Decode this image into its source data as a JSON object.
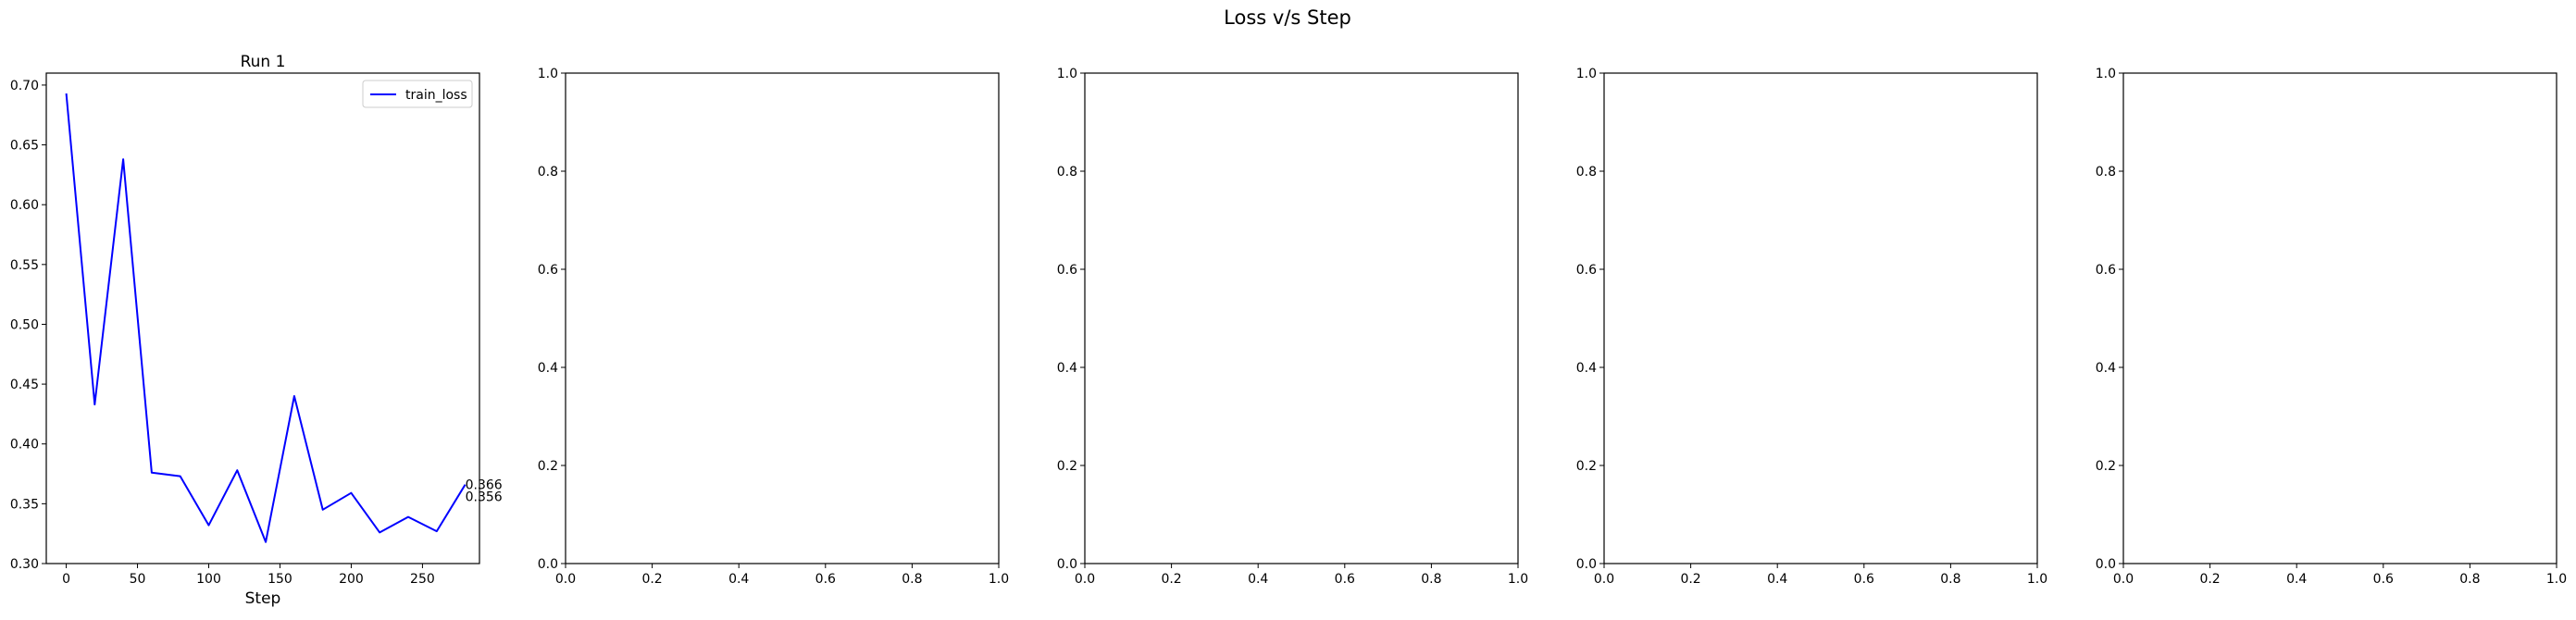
{
  "figure": {
    "suptitle": "Loss v/s Step"
  },
  "chart_data": [
    {
      "type": "line",
      "title": "Run 1",
      "xlabel": "Step",
      "ylabel": "",
      "xlim": [
        -14,
        290
      ],
      "ylim": [
        0.3,
        0.71
      ],
      "xticks": [
        0,
        50,
        100,
        150,
        200,
        250
      ],
      "yticks": [
        0.3,
        0.35,
        0.4,
        0.45,
        0.5,
        0.55,
        0.6,
        0.65,
        0.7
      ],
      "grid": false,
      "legend": "top-right",
      "series": [
        {
          "name": "train_loss",
          "color": "#0000ff",
          "x": [
            0,
            20,
            40,
            60,
            80,
            100,
            120,
            140,
            160,
            180,
            200,
            220,
            240,
            260,
            280
          ],
          "y": [
            0.693,
            0.433,
            0.638,
            0.376,
            0.373,
            0.332,
            0.378,
            0.318,
            0.44,
            0.345,
            0.359,
            0.326,
            0.339,
            0.327,
            0.366
          ]
        }
      ],
      "annotations": [
        {
          "text": "0.366",
          "x": 280,
          "y": 0.366
        },
        {
          "text": "0.356",
          "x": 280,
          "y": 0.356
        }
      ]
    },
    {
      "type": "line",
      "title": "",
      "xlabel": "",
      "ylabel": "",
      "xlim": [
        0,
        1
      ],
      "ylim": [
        0,
        1
      ],
      "xticks": [
        0.0,
        0.2,
        0.4,
        0.6,
        0.8,
        1.0
      ],
      "yticks": [
        0.0,
        0.2,
        0.4,
        0.6,
        0.8,
        1.0
      ],
      "grid": false,
      "series": []
    },
    {
      "type": "line",
      "title": "",
      "xlabel": "",
      "ylabel": "",
      "xlim": [
        0,
        1
      ],
      "ylim": [
        0,
        1
      ],
      "xticks": [
        0.0,
        0.2,
        0.4,
        0.6,
        0.8,
        1.0
      ],
      "yticks": [
        0.0,
        0.2,
        0.4,
        0.6,
        0.8,
        1.0
      ],
      "grid": false,
      "series": []
    },
    {
      "type": "line",
      "title": "",
      "xlabel": "",
      "ylabel": "",
      "xlim": [
        0,
        1
      ],
      "ylim": [
        0,
        1
      ],
      "xticks": [
        0.0,
        0.2,
        0.4,
        0.6,
        0.8,
        1.0
      ],
      "yticks": [
        0.0,
        0.2,
        0.4,
        0.6,
        0.8,
        1.0
      ],
      "grid": false,
      "series": []
    },
    {
      "type": "line",
      "title": "",
      "xlabel": "",
      "ylabel": "",
      "xlim": [
        0,
        1
      ],
      "ylim": [
        0,
        1
      ],
      "xticks": [
        0.0,
        0.2,
        0.4,
        0.6,
        0.8,
        1.0
      ],
      "yticks": [
        0.0,
        0.2,
        0.4,
        0.6,
        0.8,
        1.0
      ],
      "grid": false,
      "series": []
    }
  ]
}
